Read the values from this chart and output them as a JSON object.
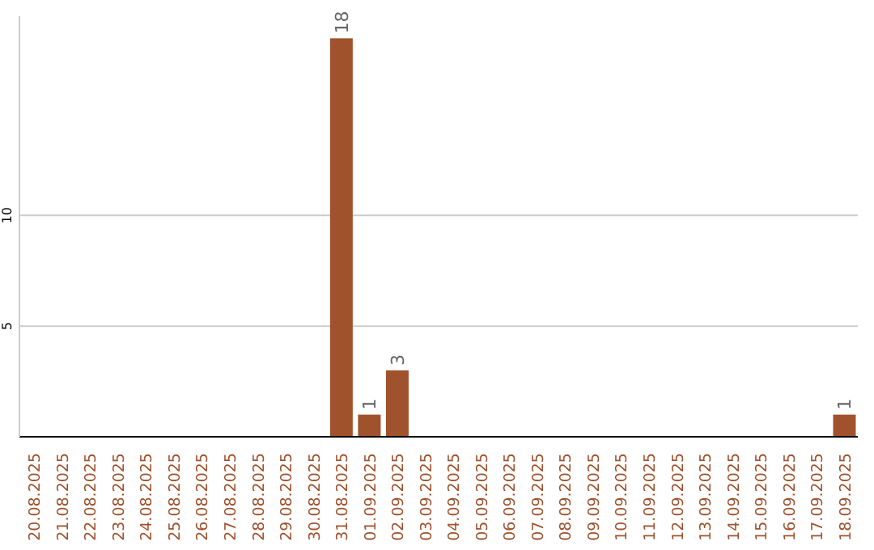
{
  "chart_data": {
    "type": "bar",
    "categories": [
      "20.08.2025",
      "21.08.2025",
      "22.08.2025",
      "23.08.2025",
      "24.08.2025",
      "25.08.2025",
      "26.08.2025",
      "27.08.2025",
      "28.08.2025",
      "29.08.2025",
      "30.08.2025",
      "31.08.2025",
      "01.09.2025",
      "02.09.2025",
      "03.09.2025",
      "04.09.2025",
      "05.09.2025",
      "06.09.2025",
      "07.09.2025",
      "08.09.2025",
      "09.09.2025",
      "10.09.2025",
      "11.09.2025",
      "12.09.2025",
      "13.09.2025",
      "14.09.2025",
      "15.09.2025",
      "16.09.2025",
      "17.09.2025",
      "18.09.2025"
    ],
    "values": [
      0,
      0,
      0,
      0,
      0,
      0,
      0,
      0,
      0,
      0,
      0,
      18,
      1,
      3,
      0,
      0,
      0,
      0,
      0,
      0,
      0,
      0,
      0,
      0,
      0,
      0,
      0,
      0,
      0,
      1
    ],
    "value_labels": [
      null,
      null,
      null,
      null,
      null,
      null,
      null,
      null,
      null,
      null,
      null,
      "18",
      "1",
      "3",
      null,
      null,
      null,
      null,
      null,
      null,
      null,
      null,
      null,
      null,
      null,
      null,
      null,
      null,
      null,
      "1"
    ],
    "color": "#a0522d",
    "ylim": [
      0,
      19
    ],
    "yticks": [
      5,
      10
    ],
    "grid": "y"
  }
}
